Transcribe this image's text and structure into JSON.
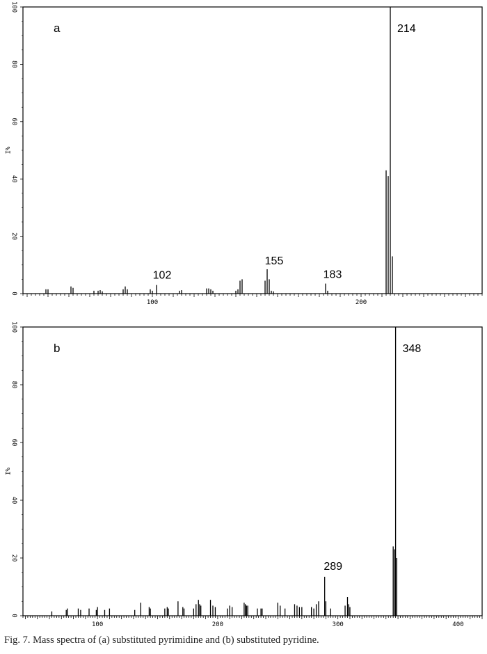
{
  "caption": "Fig. 7. Mass spectra of (a) substituted pyrimidine and (b) substituted pyridine.",
  "chart_data": [
    {
      "type": "bar",
      "panel_label": "a",
      "ylabel": "%I",
      "xlim": [
        38,
        258
      ],
      "ylim": [
        0,
        100
      ],
      "x_ticks": [
        100,
        200
      ],
      "y_ticks": [
        0,
        20,
        40,
        60,
        80,
        100
      ],
      "grid": false,
      "peak_labels": [
        "102",
        "155",
        "183",
        "214"
      ],
      "peaks": [
        {
          "x": 49,
          "y": 1.5
        },
        {
          "x": 50,
          "y": 1.5
        },
        {
          "x": 61,
          "y": 2.5
        },
        {
          "x": 62,
          "y": 2
        },
        {
          "x": 72,
          "y": 1
        },
        {
          "x": 74,
          "y": 1
        },
        {
          "x": 75,
          "y": 1.2
        },
        {
          "x": 76,
          "y": 0.8
        },
        {
          "x": 86,
          "y": 1.5
        },
        {
          "x": 87,
          "y": 2.5
        },
        {
          "x": 88,
          "y": 1.5
        },
        {
          "x": 99,
          "y": 1.5
        },
        {
          "x": 100,
          "y": 1
        },
        {
          "x": 102,
          "y": 3
        },
        {
          "x": 113,
          "y": 1
        },
        {
          "x": 114,
          "y": 1.2
        },
        {
          "x": 126,
          "y": 1.8
        },
        {
          "x": 127,
          "y": 1.8
        },
        {
          "x": 128,
          "y": 1.5
        },
        {
          "x": 129,
          "y": 1
        },
        {
          "x": 140,
          "y": 1
        },
        {
          "x": 141,
          "y": 1.5
        },
        {
          "x": 142,
          "y": 4.5
        },
        {
          "x": 143,
          "y": 5
        },
        {
          "x": 154,
          "y": 4.5
        },
        {
          "x": 155,
          "y": 8.5
        },
        {
          "x": 156,
          "y": 5
        },
        {
          "x": 157,
          "y": 1
        },
        {
          "x": 158,
          "y": 0.8
        },
        {
          "x": 183,
          "y": 3.5
        },
        {
          "x": 184,
          "y": 1
        },
        {
          "x": 212,
          "y": 43
        },
        {
          "x": 213,
          "y": 41
        },
        {
          "x": 214,
          "y": 100
        },
        {
          "x": 215,
          "y": 13
        }
      ]
    },
    {
      "type": "bar",
      "panel_label": "b",
      "ylabel": "%I",
      "xlim": [
        38,
        420
      ],
      "ylim": [
        0,
        100
      ],
      "x_ticks": [
        100,
        200,
        300,
        400
      ],
      "y_ticks": [
        0,
        20,
        40,
        60,
        80,
        100
      ],
      "grid": false,
      "peak_labels": [
        "289",
        "348"
      ],
      "peaks": [
        {
          "x": 62,
          "y": 1.5
        },
        {
          "x": 74,
          "y": 2
        },
        {
          "x": 75,
          "y": 2.5
        },
        {
          "x": 84,
          "y": 2.5
        },
        {
          "x": 86,
          "y": 2
        },
        {
          "x": 93,
          "y": 2.5
        },
        {
          "x": 99,
          "y": 2
        },
        {
          "x": 100,
          "y": 3
        },
        {
          "x": 106,
          "y": 2
        },
        {
          "x": 110,
          "y": 2.5
        },
        {
          "x": 131,
          "y": 2
        },
        {
          "x": 136,
          "y": 4.5
        },
        {
          "x": 143,
          "y": 3
        },
        {
          "x": 144,
          "y": 2.5
        },
        {
          "x": 156,
          "y": 2.5
        },
        {
          "x": 158,
          "y": 3
        },
        {
          "x": 159,
          "y": 2.5
        },
        {
          "x": 167,
          "y": 5
        },
        {
          "x": 171,
          "y": 3
        },
        {
          "x": 172,
          "y": 2.5
        },
        {
          "x": 180,
          "y": 2.5
        },
        {
          "x": 182,
          "y": 4
        },
        {
          "x": 184,
          "y": 5.5
        },
        {
          "x": 185,
          "y": 4
        },
        {
          "x": 186,
          "y": 3.5
        },
        {
          "x": 194,
          "y": 5.5
        },
        {
          "x": 196,
          "y": 3.5
        },
        {
          "x": 198,
          "y": 3
        },
        {
          "x": 208,
          "y": 2.5
        },
        {
          "x": 210,
          "y": 3.5
        },
        {
          "x": 212,
          "y": 3
        },
        {
          "x": 222,
          "y": 4.5
        },
        {
          "x": 223,
          "y": 4
        },
        {
          "x": 224,
          "y": 3.5
        },
        {
          "x": 225,
          "y": 3.5
        },
        {
          "x": 233,
          "y": 2.5
        },
        {
          "x": 236,
          "y": 2.5
        },
        {
          "x": 237,
          "y": 2.5
        },
        {
          "x": 250,
          "y": 4.5
        },
        {
          "x": 252,
          "y": 3.5
        },
        {
          "x": 256,
          "y": 2.5
        },
        {
          "x": 264,
          "y": 4
        },
        {
          "x": 266,
          "y": 3.5
        },
        {
          "x": 268,
          "y": 3
        },
        {
          "x": 270,
          "y": 3
        },
        {
          "x": 278,
          "y": 3
        },
        {
          "x": 280,
          "y": 2.5
        },
        {
          "x": 282,
          "y": 4
        },
        {
          "x": 284,
          "y": 5
        },
        {
          "x": 289,
          "y": 13.5
        },
        {
          "x": 290,
          "y": 5
        },
        {
          "x": 294,
          "y": 2.5
        },
        {
          "x": 306,
          "y": 3.5
        },
        {
          "x": 308,
          "y": 6.5
        },
        {
          "x": 309,
          "y": 4
        },
        {
          "x": 310,
          "y": 3
        },
        {
          "x": 346,
          "y": 24
        },
        {
          "x": 347,
          "y": 23
        },
        {
          "x": 348,
          "y": 100
        },
        {
          "x": 349,
          "y": 20
        }
      ]
    }
  ]
}
